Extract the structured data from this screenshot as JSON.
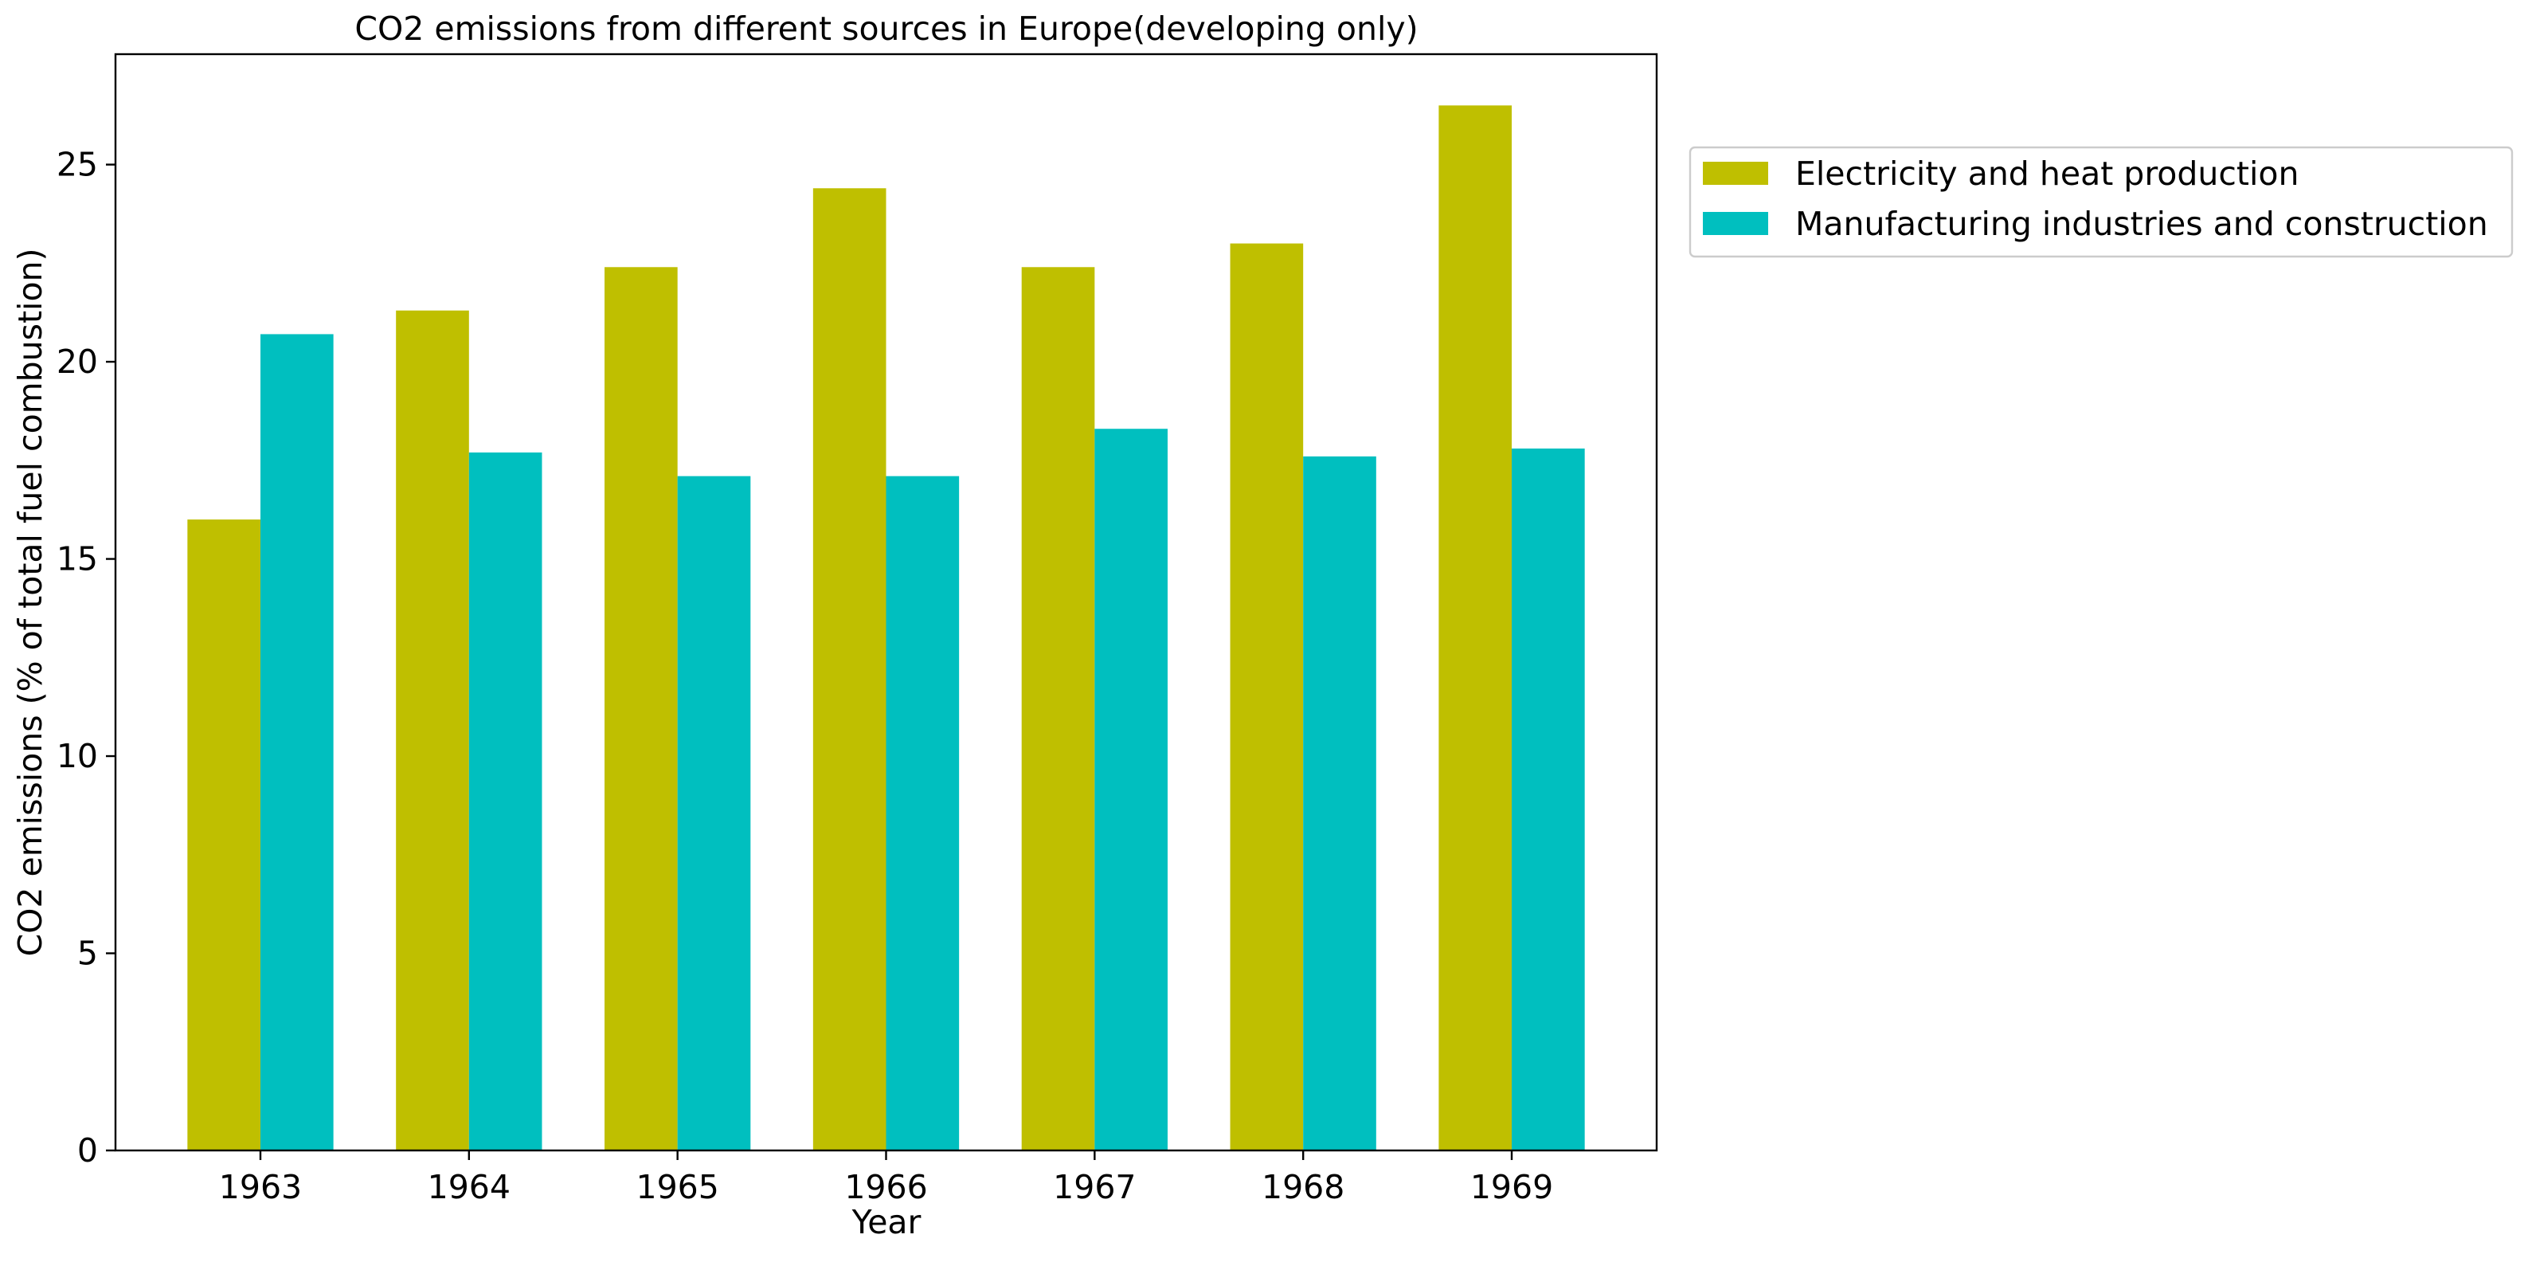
{
  "chart_data": {
    "type": "bar",
    "title": "CO2 emissions from different sources in Europe(developing only)",
    "xlabel": "Year",
    "ylabel": "CO2 emissions (% of total fuel combustion)",
    "categories": [
      "1963",
      "1964",
      "1965",
      "1966",
      "1967",
      "1968",
      "1969"
    ],
    "series": [
      {
        "name": "Electricity and heat production",
        "color": "#bfbf00",
        "values": [
          16.0,
          21.3,
          22.4,
          24.4,
          22.4,
          23.0,
          26.5
        ]
      },
      {
        "name": "Manufacturing industries and construction",
        "color": "#00bfbf",
        "values": [
          20.7,
          17.7,
          17.1,
          17.1,
          18.3,
          17.6,
          17.8
        ]
      }
    ],
    "ylim": [
      0,
      27.8
    ],
    "yticks": [
      0,
      5,
      10,
      15,
      20,
      25
    ],
    "grid": false,
    "legend_position": "outside-right-top"
  }
}
